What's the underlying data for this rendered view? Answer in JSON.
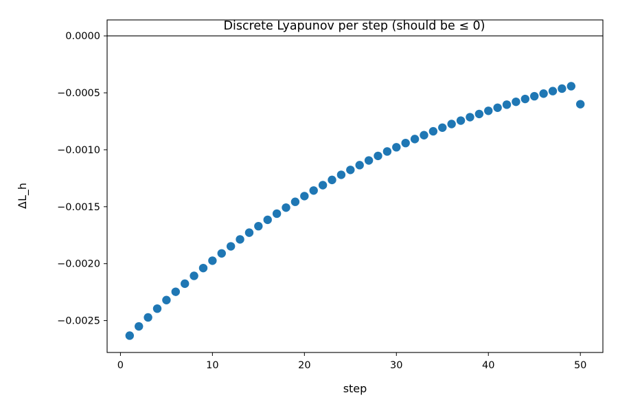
{
  "chart_data": {
    "type": "scatter",
    "title": "Discrete Lyapunov per step (should be ≤ 0)",
    "xlabel": "step",
    "ylabel": "ΔL_h",
    "xlim": [
      -1.45,
      52.45
    ],
    "ylim": [
      -0.00278,
      0.00014
    ],
    "xticks": [
      0,
      10,
      20,
      30,
      40,
      50
    ],
    "xtick_labels": [
      "0",
      "10",
      "20",
      "30",
      "40",
      "50"
    ],
    "yticks": [
      0.0,
      -0.0005,
      -0.001,
      -0.0015,
      -0.002,
      -0.0025
    ],
    "ytick_labels": [
      "0.0000",
      "−0.0005",
      "−0.0010",
      "−0.0015",
      "−0.0020",
      "−0.0025"
    ],
    "reference_line_y": 0.0,
    "grid": false,
    "legend": "none",
    "marker_color": "#1f77b4",
    "x": [
      1,
      2,
      3,
      4,
      5,
      6,
      7,
      8,
      9,
      10,
      11,
      12,
      13,
      14,
      15,
      16,
      17,
      18,
      19,
      20,
      21,
      22,
      23,
      24,
      25,
      26,
      27,
      28,
      29,
      30,
      31,
      32,
      33,
      34,
      35,
      36,
      37,
      38,
      39,
      40,
      41,
      42,
      43,
      44,
      45,
      46,
      47,
      48,
      49,
      50
    ],
    "y": [
      -0.002632,
      -0.002551,
      -0.002472,
      -0.002395,
      -0.00232,
      -0.002247,
      -0.002176,
      -0.002107,
      -0.002039,
      -0.001974,
      -0.00191,
      -0.001848,
      -0.001787,
      -0.001728,
      -0.001671,
      -0.001615,
      -0.001561,
      -0.001508,
      -0.001457,
      -0.001407,
      -0.001358,
      -0.001311,
      -0.001265,
      -0.00122,
      -0.001177,
      -0.001135,
      -0.001094,
      -0.001054,
      -0.001015,
      -0.000978,
      -0.000941,
      -0.000906,
      -0.000872,
      -0.000838,
      -0.000806,
      -0.000774,
      -0.000744,
      -0.000714,
      -0.000686,
      -0.000658,
      -0.000631,
      -0.000604,
      -0.000579,
      -0.000554,
      -0.00053,
      -0.000507,
      -0.000485,
      -0.000463,
      -0.000442,
      -0.0006
    ]
  }
}
